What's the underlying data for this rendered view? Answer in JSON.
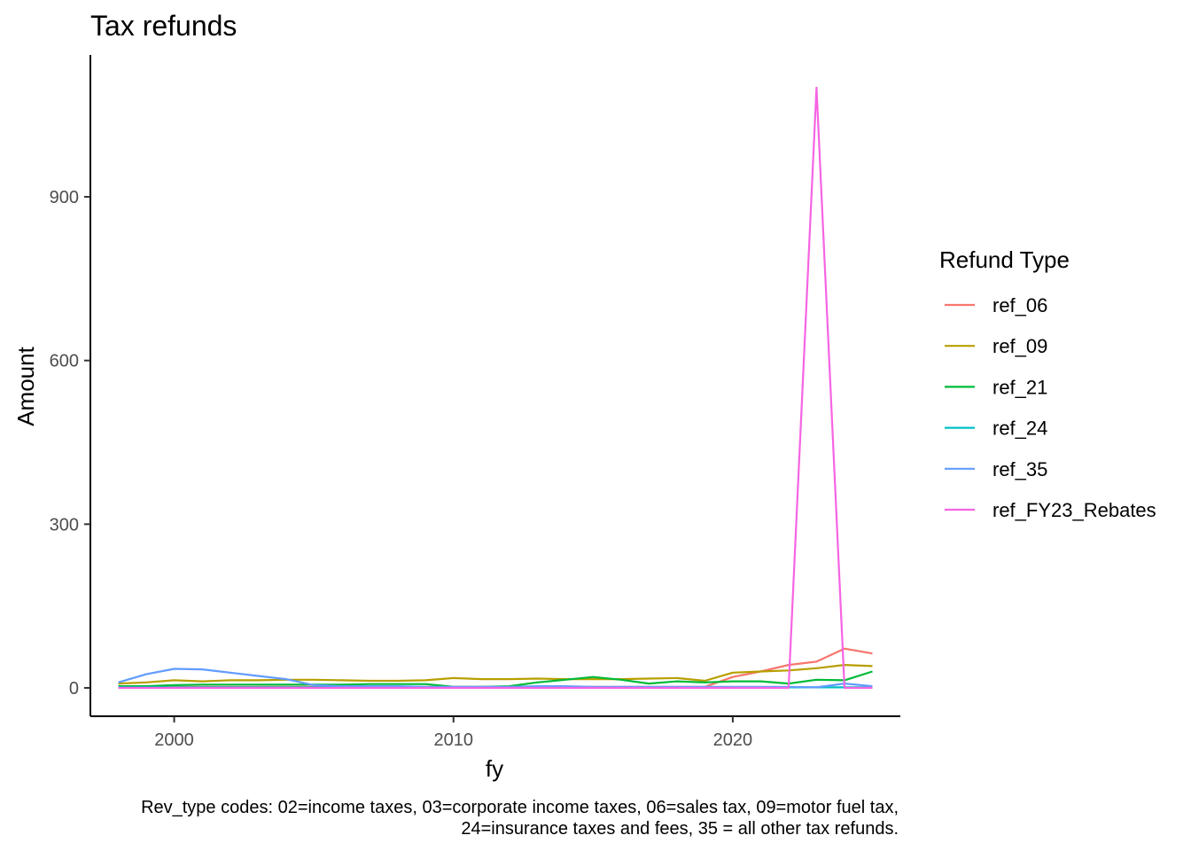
{
  "chart_data": {
    "type": "line",
    "title": "Tax refunds",
    "xlabel": "fy",
    "ylabel": "Amount",
    "xlim": [
      1997,
      2026
    ],
    "ylim": [
      -52,
      1160
    ],
    "x_ticks": [
      2000,
      2010,
      2020
    ],
    "y_ticks": [
      0,
      300,
      600,
      900
    ],
    "grid": false,
    "legend_title": "Refund Type",
    "legend_position": "right",
    "caption": [
      "Rev_type codes: 02=income taxes, 03=corporate income taxes, 06=sales tax, 09=motor fuel tax,",
      "24=insurance taxes and fees, 35 = all other tax refunds."
    ],
    "x": [
      1998,
      1999,
      2000,
      2001,
      2002,
      2003,
      2004,
      2005,
      2006,
      2007,
      2008,
      2009,
      2010,
      2011,
      2012,
      2013,
      2014,
      2015,
      2016,
      2017,
      2018,
      2019,
      2020,
      2021,
      2022,
      2023,
      2024,
      2025
    ],
    "series": [
      {
        "name": "ref_06",
        "color": "#F8766D",
        "values": [
          2,
          2,
          2,
          2,
          2,
          2,
          2,
          2,
          2,
          2,
          2,
          2,
          2,
          2,
          2,
          2,
          2,
          2,
          2,
          2,
          2,
          2,
          20,
          30,
          42,
          48,
          72,
          63
        ]
      },
      {
        "name": "ref_09",
        "color": "#B79F00",
        "values": [
          8,
          10,
          14,
          12,
          14,
          14,
          15,
          15,
          14,
          13,
          13,
          14,
          18,
          16,
          16,
          17,
          16,
          16,
          16,
          17,
          18,
          13,
          28,
          30,
          32,
          36,
          42,
          40
        ]
      },
      {
        "name": "ref_21",
        "color": "#00BA38",
        "values": [
          3,
          3,
          5,
          6,
          6,
          6,
          6,
          6,
          6,
          7,
          7,
          7,
          2,
          2,
          3,
          10,
          15,
          20,
          15,
          8,
          12,
          10,
          12,
          12,
          8,
          15,
          14,
          30
        ]
      },
      {
        "name": "ref_24",
        "color": "#00BFC4",
        "values": [
          1,
          1,
          1,
          1,
          1,
          1,
          1,
          1,
          1,
          1,
          1,
          1,
          1,
          1,
          1,
          1,
          1,
          1,
          1,
          1,
          1,
          1,
          1,
          1,
          1,
          1,
          1,
          1
        ]
      },
      {
        "name": "ref_35",
        "color": "#619CFF",
        "values": [
          10,
          25,
          35,
          34,
          28,
          22,
          16,
          5,
          3,
          3,
          3,
          2,
          2,
          2,
          2,
          3,
          3,
          2,
          2,
          2,
          2,
          2,
          2,
          2,
          2,
          1,
          8,
          3
        ]
      },
      {
        "name": "ref_FY23_Rebates",
        "color": "#F564E3",
        "values": [
          0,
          0,
          0,
          0,
          0,
          0,
          0,
          0,
          0,
          0,
          0,
          0,
          0,
          0,
          0,
          0,
          0,
          0,
          0,
          0,
          0,
          0,
          0,
          0,
          0,
          1100,
          0,
          0
        ]
      }
    ]
  }
}
